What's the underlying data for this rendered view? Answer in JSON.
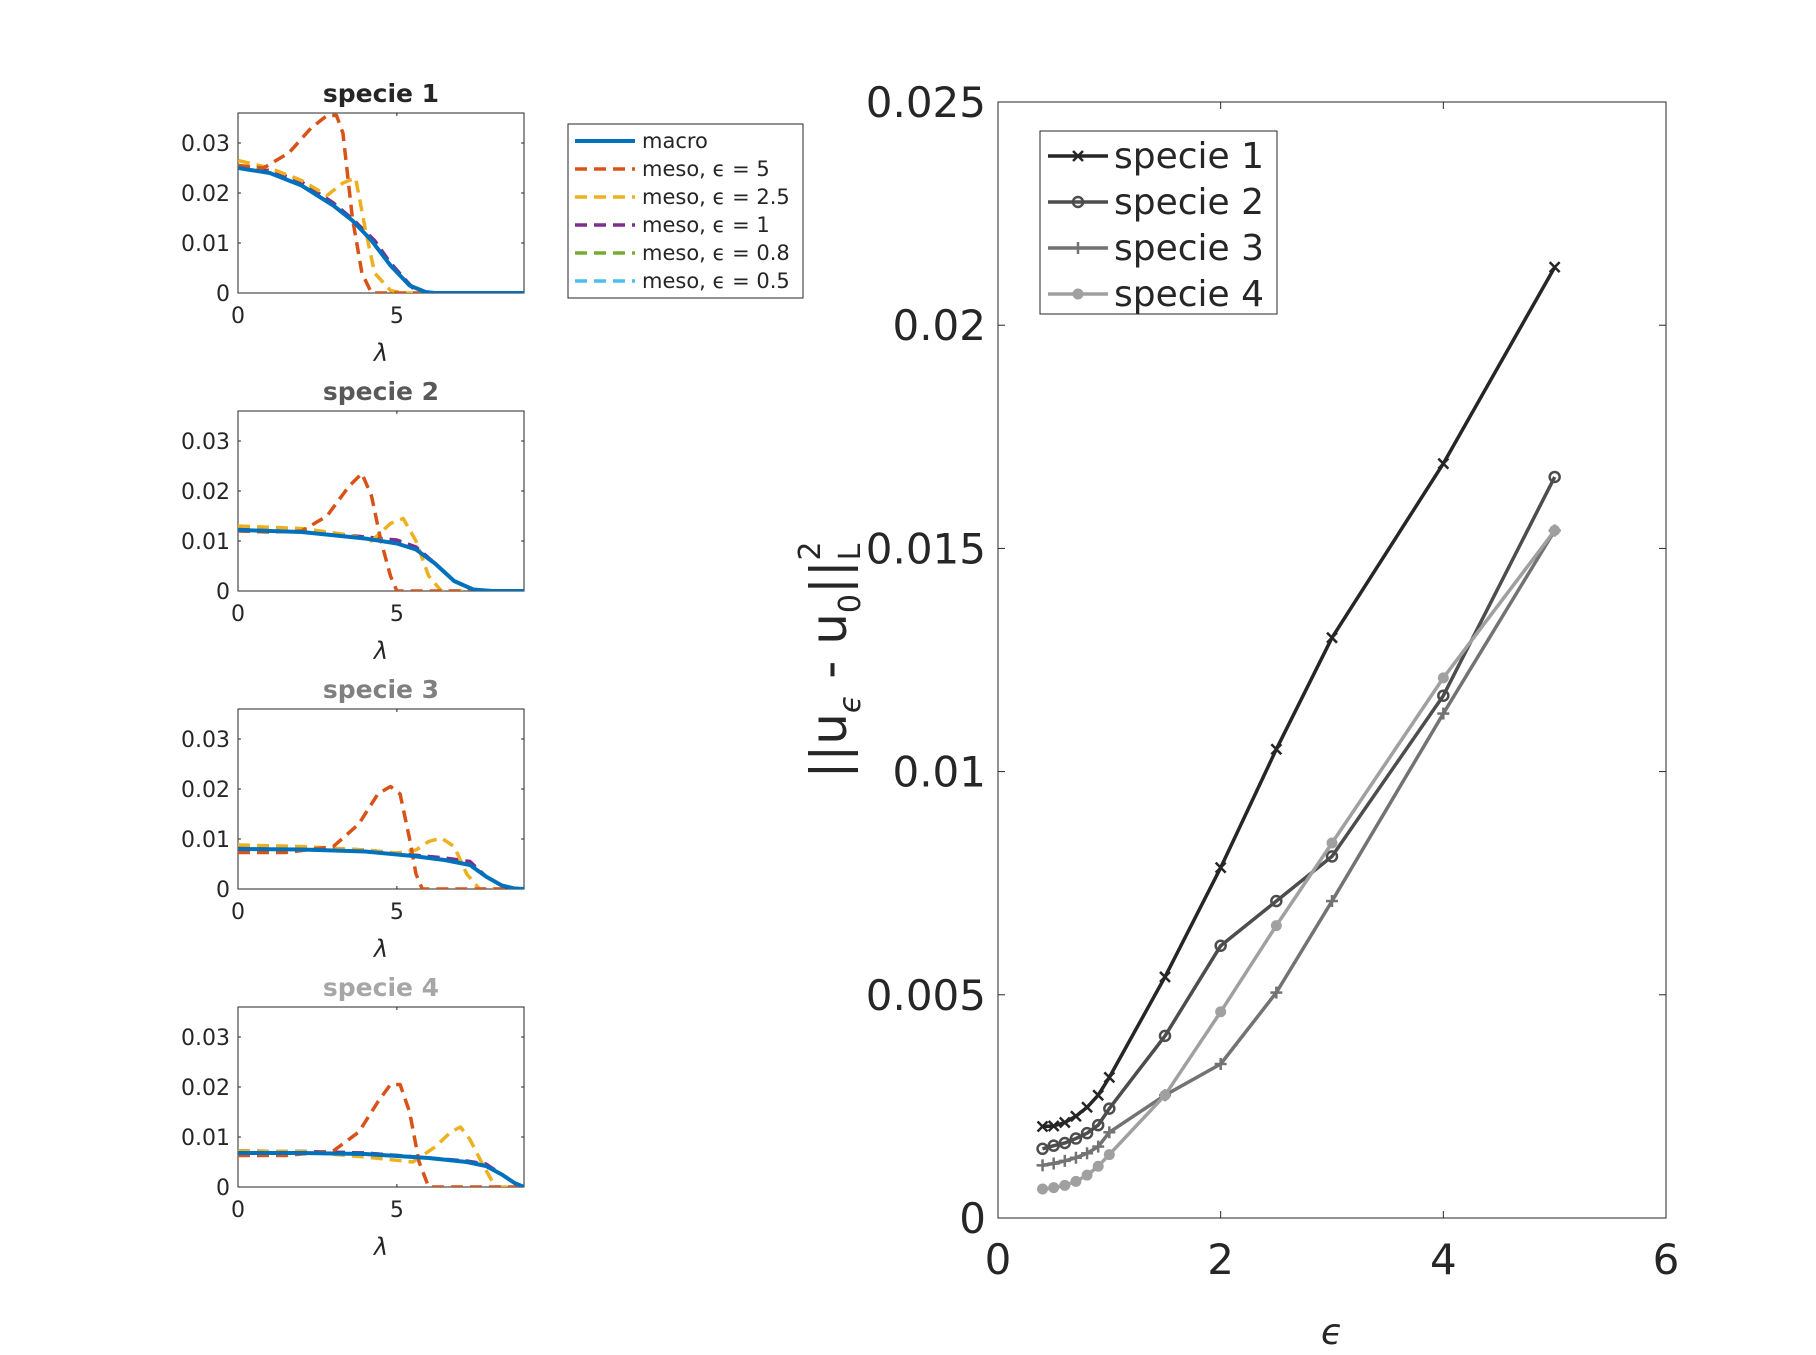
{
  "chart_data": [
    {
      "type": "line",
      "title": "specie 1",
      "title_color": "#262626",
      "xlabel": "λ",
      "xlim": [
        0,
        9
      ],
      "ylim": [
        0,
        0.036
      ],
      "xticks": [
        0,
        5
      ],
      "xtick_labels": [
        "0",
        "5"
      ],
      "yticks": [
        0,
        0.01,
        0.02,
        0.03
      ],
      "ytick_labels": [
        "0",
        "0.01",
        "0.02",
        "0.03"
      ],
      "series": [
        {
          "name": "meso, ε = 0.5",
          "color": "#4DBEEE",
          "dash": true,
          "x": [
            0,
            1,
            2,
            3,
            3.6,
            4.2,
            4.8,
            5.5,
            6,
            9
          ],
          "y": [
            0.0255,
            0.0245,
            0.022,
            0.018,
            0.0145,
            0.0105,
            0.0055,
            0.001,
            0,
            0
          ]
        },
        {
          "name": "meso, ε = 0.8",
          "color": "#77AC30",
          "dash": true,
          "x": [
            0,
            1,
            2,
            3,
            3.6,
            4.2,
            4.8,
            5.5,
            6,
            9
          ],
          "y": [
            0.0255,
            0.0245,
            0.0222,
            0.018,
            0.0146,
            0.0108,
            0.0058,
            0.001,
            0,
            0
          ]
        },
        {
          "name": "meso, ε = 1",
          "color": "#7E2F8E",
          "dash": true,
          "x": [
            0,
            1,
            2,
            3,
            3.6,
            4.3,
            4.8,
            5.5,
            6,
            9
          ],
          "y": [
            0.0255,
            0.0245,
            0.0222,
            0.018,
            0.0148,
            0.0105,
            0.006,
            0.001,
            0,
            0
          ]
        },
        {
          "name": "meso, ε = 2.5",
          "color": "#EDB120",
          "dash": true,
          "x": [
            0,
            1,
            2,
            2.8,
            3.3,
            3.7,
            4.0,
            4.3,
            4.8,
            5.2,
            9
          ],
          "y": [
            0.0265,
            0.025,
            0.0225,
            0.0195,
            0.022,
            0.023,
            0.013,
            0.004,
            0.0005,
            0,
            0
          ]
        },
        {
          "name": "meso, ε = 5",
          "color": "#D95319",
          "dash": true,
          "x": [
            0,
            0.8,
            1.6,
            2.3,
            2.8,
            3.1,
            3.3,
            3.6,
            3.9,
            4.2,
            9
          ],
          "y": [
            0.0255,
            0.025,
            0.028,
            0.033,
            0.0355,
            0.0355,
            0.032,
            0.015,
            0.004,
            0,
            0
          ]
        },
        {
          "name": "macro",
          "color": "#0072BD",
          "dash": false,
          "x": [
            0,
            1,
            2,
            3,
            3.6,
            4.2,
            4.8,
            5.4,
            5.9,
            6.2,
            9
          ],
          "y": [
            0.025,
            0.024,
            0.0215,
            0.0175,
            0.0145,
            0.0105,
            0.0055,
            0.0015,
            0.0002,
            0,
            0
          ]
        }
      ]
    },
    {
      "type": "line",
      "title": "specie 2",
      "title_color": "#595959",
      "xlabel": "λ",
      "xlim": [
        0,
        9
      ],
      "ylim": [
        0,
        0.036
      ],
      "xticks": [
        0,
        5
      ],
      "xtick_labels": [
        "0",
        "5"
      ],
      "yticks": [
        0,
        0.01,
        0.02,
        0.03
      ],
      "ytick_labels": [
        "0",
        "0.01",
        "0.02",
        "0.03"
      ],
      "series": [
        {
          "name": "meso, ε = 0.5",
          "color": "#4DBEEE",
          "dash": true,
          "x": [
            0,
            2,
            4,
            5,
            5.6,
            6.2,
            6.8,
            7.4,
            8,
            9
          ],
          "y": [
            0.0125,
            0.012,
            0.0108,
            0.0098,
            0.0085,
            0.0055,
            0.002,
            0.0003,
            0,
            0
          ]
        },
        {
          "name": "meso, ε = 0.8",
          "color": "#77AC30",
          "dash": true,
          "x": [
            0,
            2,
            4,
            5,
            5.6,
            6.2,
            6.8,
            7.4,
            8,
            9
          ],
          "y": [
            0.0125,
            0.012,
            0.0108,
            0.01,
            0.0087,
            0.0055,
            0.002,
            0.0003,
            0,
            0
          ]
        },
        {
          "name": "meso, ε = 1",
          "color": "#7E2F8E",
          "dash": true,
          "x": [
            0,
            2,
            4,
            5,
            5.6,
            6.2,
            6.8,
            7.4,
            8,
            9
          ],
          "y": [
            0.0125,
            0.012,
            0.0108,
            0.0102,
            0.0088,
            0.0055,
            0.002,
            0.0003,
            0,
            0
          ]
        },
        {
          "name": "meso, ε = 2.5",
          "color": "#EDB120",
          "dash": true,
          "x": [
            0,
            2,
            3.5,
            4.2,
            4.8,
            5.2,
            5.6,
            6.0,
            6.4,
            9
          ],
          "y": [
            0.013,
            0.0125,
            0.0112,
            0.01,
            0.0135,
            0.0145,
            0.01,
            0.003,
            0,
            0
          ]
        },
        {
          "name": "meso, ε = 5",
          "color": "#D95319",
          "dash": true,
          "x": [
            0,
            1,
            2,
            2.8,
            3.5,
            3.9,
            4.2,
            4.5,
            4.8,
            5.0,
            9
          ],
          "y": [
            0.012,
            0.0118,
            0.012,
            0.015,
            0.021,
            0.0235,
            0.019,
            0.01,
            0.003,
            0,
            0
          ]
        },
        {
          "name": "macro",
          "color": "#0072BD",
          "dash": false,
          "x": [
            0,
            2,
            4,
            5,
            5.6,
            6.2,
            6.8,
            7.4,
            8,
            9
          ],
          "y": [
            0.0122,
            0.0118,
            0.0105,
            0.0095,
            0.0083,
            0.0055,
            0.002,
            0.0003,
            0,
            0
          ]
        }
      ]
    },
    {
      "type": "line",
      "title": "specie 3",
      "title_color": "#808080",
      "xlabel": "λ",
      "xlim": [
        0,
        9
      ],
      "ylim": [
        0,
        0.036
      ],
      "xticks": [
        0,
        5
      ],
      "xtick_labels": [
        "0",
        "5"
      ],
      "yticks": [
        0,
        0.01,
        0.02,
        0.03
      ],
      "ytick_labels": [
        "0",
        "0.01",
        "0.02",
        "0.03"
      ],
      "series": [
        {
          "name": "meso, ε = 0.5",
          "color": "#4DBEEE",
          "dash": true,
          "x": [
            0,
            2,
            4,
            5.5,
            6.5,
            7.3,
            7.8,
            8.3,
            8.7,
            9
          ],
          "y": [
            0.0085,
            0.0083,
            0.0078,
            0.0068,
            0.006,
            0.005,
            0.0025,
            0.0007,
            0.0001,
            0
          ]
        },
        {
          "name": "meso, ε = 0.8",
          "color": "#77AC30",
          "dash": true,
          "x": [
            0,
            2,
            4,
            5.5,
            6.5,
            7.3,
            7.8,
            8.3,
            8.7,
            9
          ],
          "y": [
            0.0085,
            0.0083,
            0.0078,
            0.0068,
            0.006,
            0.0052,
            0.0025,
            0.0007,
            0.0001,
            0
          ]
        },
        {
          "name": "meso, ε = 1",
          "color": "#7E2F8E",
          "dash": true,
          "x": [
            0,
            2,
            4,
            5.5,
            6.5,
            7.3,
            7.8,
            8.3,
            8.7,
            9
          ],
          "y": [
            0.0085,
            0.0083,
            0.0078,
            0.0068,
            0.0062,
            0.0055,
            0.0025,
            0.0007,
            0.0001,
            0
          ]
        },
        {
          "name": "meso, ε = 2.5",
          "color": "#EDB120",
          "dash": true,
          "x": [
            0,
            2,
            4,
            5,
            5.6,
            6.0,
            6.4,
            6.8,
            7.2,
            7.6,
            9
          ],
          "y": [
            0.0088,
            0.0085,
            0.0078,
            0.0072,
            0.0078,
            0.0095,
            0.0102,
            0.0085,
            0.003,
            0,
            0
          ]
        },
        {
          "name": "meso, ε = 5",
          "color": "#D95319",
          "dash": true,
          "x": [
            0,
            1.5,
            3,
            3.8,
            4.4,
            4.8,
            5.1,
            5.4,
            5.6,
            5.8,
            9
          ],
          "y": [
            0.0073,
            0.0073,
            0.0085,
            0.013,
            0.019,
            0.0205,
            0.019,
            0.01,
            0.003,
            0,
            0
          ]
        },
        {
          "name": "macro",
          "color": "#0072BD",
          "dash": false,
          "x": [
            0,
            2,
            4,
            5.5,
            6.5,
            7.3,
            7.8,
            8.3,
            8.7,
            9
          ],
          "y": [
            0.008,
            0.0079,
            0.0075,
            0.0066,
            0.0058,
            0.0048,
            0.0025,
            0.0007,
            0.0001,
            0
          ]
        }
      ]
    },
    {
      "type": "line",
      "title": "specie 4",
      "title_color": "#A6A6A6",
      "xlabel": "λ",
      "xlim": [
        0,
        9
      ],
      "ylim": [
        0,
        0.036
      ],
      "xticks": [
        0,
        5
      ],
      "xtick_labels": [
        "0",
        "5"
      ],
      "yticks": [
        0,
        0.01,
        0.02,
        0.03
      ],
      "ytick_labels": [
        "0",
        "0.01",
        "0.02",
        "0.03"
      ],
      "series": [
        {
          "name": "meso, ε = 0.5",
          "color": "#4DBEEE",
          "dash": true,
          "x": [
            0,
            2,
            4,
            6,
            7.2,
            7.8,
            8.3,
            8.7,
            9
          ],
          "y": [
            0.0072,
            0.0071,
            0.0068,
            0.0058,
            0.005,
            0.0042,
            0.0025,
            0.0008,
            0
          ]
        },
        {
          "name": "meso, ε = 0.8",
          "color": "#77AC30",
          "dash": true,
          "x": [
            0,
            2,
            4,
            6,
            7.2,
            7.8,
            8.3,
            8.7,
            9
          ],
          "y": [
            0.0072,
            0.0071,
            0.0068,
            0.0058,
            0.005,
            0.0044,
            0.0025,
            0.0008,
            0
          ]
        },
        {
          "name": "meso, ε = 1",
          "color": "#7E2F8E",
          "dash": true,
          "x": [
            0,
            2,
            4,
            6,
            7.2,
            7.8,
            8.3,
            8.7,
            9
          ],
          "y": [
            0.0072,
            0.0071,
            0.0068,
            0.0058,
            0.0052,
            0.0046,
            0.0025,
            0.0008,
            0
          ]
        },
        {
          "name": "meso, ε = 2.5",
          "color": "#EDB120",
          "dash": true,
          "x": [
            0,
            2,
            4,
            5.5,
            6.2,
            6.7,
            7.0,
            7.3,
            7.7,
            8.1,
            9
          ],
          "y": [
            0.0072,
            0.0071,
            0.006,
            0.005,
            0.008,
            0.011,
            0.012,
            0.0095,
            0.0045,
            0,
            0
          ]
        },
        {
          "name": "meso, ε = 5",
          "color": "#D95319",
          "dash": true,
          "x": [
            0,
            1.5,
            3,
            3.8,
            4.4,
            4.8,
            5.1,
            5.4,
            5.7,
            6.0,
            9
          ],
          "y": [
            0.0063,
            0.0063,
            0.0072,
            0.011,
            0.017,
            0.0205,
            0.0205,
            0.015,
            0.005,
            0,
            0
          ]
        },
        {
          "name": "macro",
          "color": "#0072BD",
          "dash": false,
          "x": [
            0,
            2,
            4,
            6,
            7.2,
            7.8,
            8.3,
            8.7,
            9
          ],
          "y": [
            0.0068,
            0.0068,
            0.0066,
            0.0058,
            0.005,
            0.0042,
            0.0025,
            0.0008,
            0
          ]
        }
      ]
    },
    {
      "type": "line",
      "title": "",
      "xlabel": "ϵ",
      "ylabel": "||u_ϵ - u_0||_L^2",
      "xlim": [
        0,
        6
      ],
      "ylim": [
        0,
        0.025
      ],
      "xticks": [
        0,
        2,
        4,
        6
      ],
      "xtick_labels": [
        "0",
        "2",
        "4",
        "6"
      ],
      "yticks": [
        0,
        0.005,
        0.01,
        0.015,
        0.02,
        0.025
      ],
      "ytick_labels": [
        "0",
        "0.005",
        "0.01",
        "0.015",
        "0.02",
        "0.025"
      ],
      "x": [
        0.4,
        0.5,
        0.6,
        0.7,
        0.8,
        0.9,
        1.0,
        1.5,
        2,
        2.5,
        3,
        4,
        5
      ],
      "series": [
        {
          "name": "specie 1",
          "color": "#262626",
          "marker": "x",
          "values": [
            0.00205,
            0.00206,
            0.00214,
            0.00228,
            0.00248,
            0.00275,
            0.00315,
            0.0054,
            0.00785,
            0.0105,
            0.013,
            0.0169,
            0.0213
          ]
        },
        {
          "name": "specie 2",
          "color": "#4D4D4D",
          "marker": "o",
          "values": [
            0.00155,
            0.00162,
            0.00168,
            0.00178,
            0.0019,
            0.00208,
            0.00245,
            0.00408,
            0.0061,
            0.0071,
            0.0081,
            0.0117,
            0.0166
          ]
        },
        {
          "name": "specie 3",
          "color": "#737373",
          "marker": "+",
          "values": [
            0.00118,
            0.00122,
            0.00128,
            0.00135,
            0.00145,
            0.0016,
            0.00192,
            0.00275,
            0.00345,
            0.00505,
            0.0071,
            0.0113,
            0.0154
          ]
        },
        {
          "name": "specie 4",
          "color": "#A0A0A0",
          "marker": "dot",
          "values": [
            0.00065,
            0.00068,
            0.00073,
            0.00082,
            0.00096,
            0.00116,
            0.00142,
            0.00275,
            0.00462,
            0.00655,
            0.0084,
            0.0121,
            0.0154
          ]
        }
      ]
    }
  ],
  "legend_small": {
    "entries": [
      {
        "label": "macro",
        "color": "#0072BD",
        "dash": false
      },
      {
        "label": "meso, ϵ = 5",
        "color": "#D95319",
        "dash": true
      },
      {
        "label": "meso, ϵ = 2.5",
        "color": "#EDB120",
        "dash": true
      },
      {
        "label": "meso, ϵ = 1",
        "color": "#7E2F8E",
        "dash": true
      },
      {
        "label": "meso, ϵ = 0.8",
        "color": "#77AC30",
        "dash": true
      },
      {
        "label": "meso, ϵ = 0.5",
        "color": "#4DBEEE",
        "dash": true
      }
    ]
  },
  "legend_big": {
    "entries": [
      {
        "label": "specie 1",
        "color": "#262626",
        "marker": "x"
      },
      {
        "label": "specie 2",
        "color": "#4D4D4D",
        "marker": "o"
      },
      {
        "label": "specie 3",
        "color": "#737373",
        "marker": "+"
      },
      {
        "label": "specie 4",
        "color": "#A0A0A0",
        "marker": "dot"
      }
    ]
  }
}
